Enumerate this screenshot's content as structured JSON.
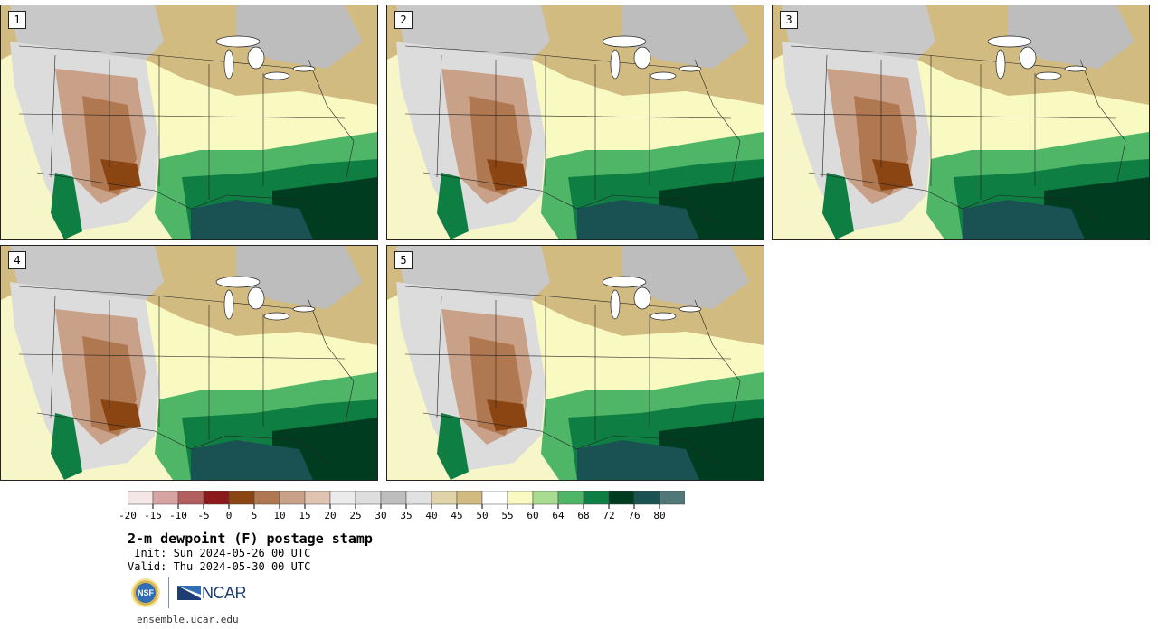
{
  "panels": [
    {
      "label": "1"
    },
    {
      "label": "2"
    },
    {
      "label": "3"
    },
    {
      "label": "4"
    },
    {
      "label": "5"
    }
  ],
  "colorbar": {
    "colors": [
      "#f4e6e6",
      "#d8a3a3",
      "#b45f5f",
      "#8b1a1a",
      "#8b4513",
      "#b07850",
      "#c9a088",
      "#e0c3b0",
      "#ebebeb",
      "#dedede",
      "#bdbdbd",
      "#e1e1e1",
      "#e0d3a8",
      "#d2bb80",
      "#ffffff",
      "#f9f9c2",
      "#a8dc90",
      "#4fb668",
      "#0e7e42",
      "#003d20",
      "#1a5254",
      "#517878"
    ],
    "ticks": [
      "-20",
      "-15",
      "-10",
      "-5",
      "0",
      "5",
      "10",
      "15",
      "20",
      "25",
      "30",
      "35",
      "40",
      "45",
      "50",
      "55",
      "60",
      "64",
      "68",
      "72",
      "76",
      "80"
    ]
  },
  "title": "2-m dewpoint (F) postage stamp",
  "init_line": " Init: Sun 2024-05-26 00 UTC",
  "valid_line": "Valid: Thu 2024-05-30 00 UTC",
  "logos": {
    "nsf": "NSF",
    "ncar": "NCAR"
  },
  "website": "ensemble.ucar.edu"
}
